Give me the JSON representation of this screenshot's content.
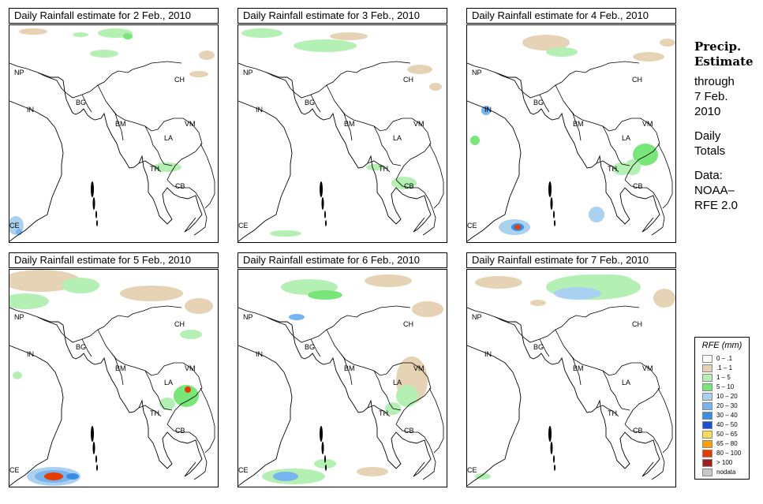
{
  "panels": [
    {
      "title": "Daily Rainfall estimate for  2 Feb., 2010"
    },
    {
      "title": "Daily Rainfall estimate for  3 Feb., 2010"
    },
    {
      "title": "Daily Rainfall estimate for  4 Feb., 2010"
    },
    {
      "title": "Daily Rainfall estimate for  5 Feb., 2010"
    },
    {
      "title": "Daily Rainfall estimate for  6 Feb., 2010"
    },
    {
      "title": "Daily Rainfall estimate for  7 Feb., 2010"
    }
  ],
  "country_labels": [
    "NP",
    "CH",
    "IN",
    "BG",
    "BM",
    "VM",
    "LA",
    "TH",
    "CB",
    "CE"
  ],
  "sidebar": {
    "title_line1": "Precip.",
    "title_line2": "Estimate",
    "through_line1": "through",
    "through_line2": "7 Feb.",
    "through_line3": "2010",
    "daily_line1": "Daily",
    "daily_line2": "Totals",
    "data_line1": "Data:",
    "data_line2": "NOAA–",
    "data_line3": "RFE 2.0"
  },
  "legend": {
    "title": "RFE (mm)",
    "items": [
      {
        "label": "0 – .1",
        "color": "#ffffff"
      },
      {
        "label": ".1 – 1",
        "color": "#e6d2b4"
      },
      {
        "label": "1 – 5",
        "color": "#b4f0b4"
      },
      {
        "label": "5 – 10",
        "color": "#78e678"
      },
      {
        "label": "10 – 20",
        "color": "#aad2f0"
      },
      {
        "label": "20 – 30",
        "color": "#78b4f0"
      },
      {
        "label": "30 – 40",
        "color": "#3c8ce6"
      },
      {
        "label": "40 – 50",
        "color": "#1e50d2"
      },
      {
        "label": "50 – 65",
        "color": "#fadc5a"
      },
      {
        "label": "65 – 80",
        "color": "#faa000"
      },
      {
        "label": "80 – 100",
        "color": "#e63c00"
      },
      {
        "label": "> 100",
        "color": "#a01e1e"
      },
      {
        "label": "nodata",
        "color": "#c8c8c8"
      }
    ]
  }
}
